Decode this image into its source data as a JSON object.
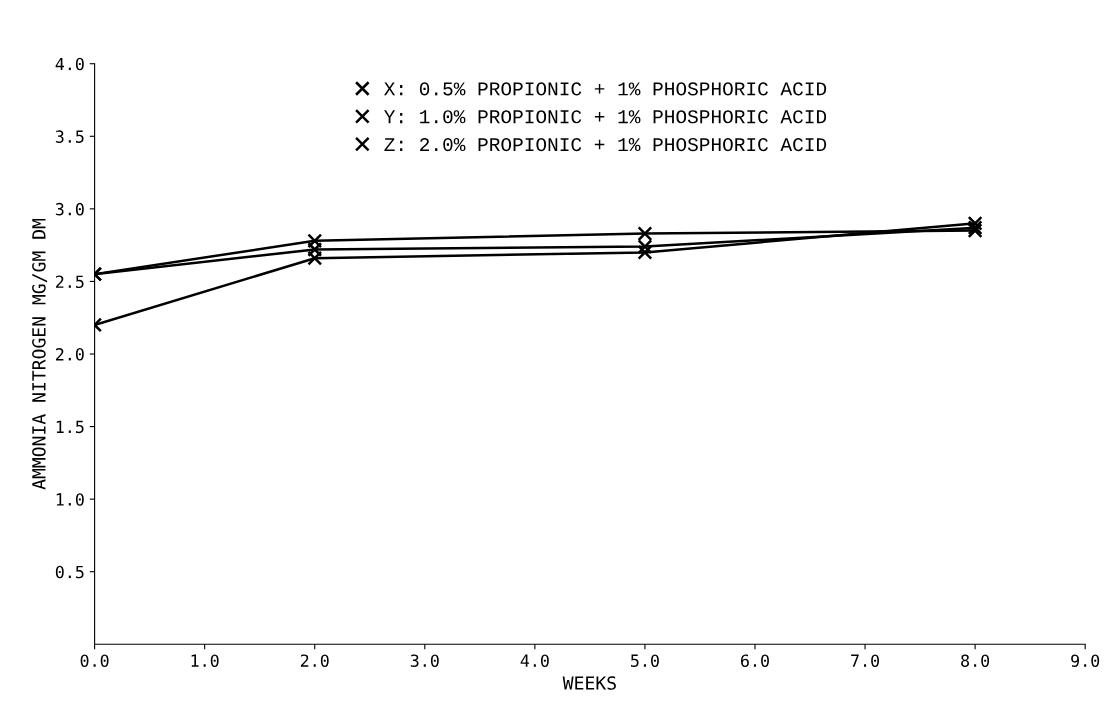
{
  "chart_data": {
    "type": "line",
    "xlabel": "WEEKS",
    "ylabel": "AMMONIA NITROGEN MG/GM DM",
    "x": [
      0,
      2,
      5,
      8
    ],
    "series": [
      {
        "name": "X: 0.5% PROPIONIC + 1% PHOSPHORIC ACID",
        "color": "#000000",
        "values": [
          2.55,
          2.78,
          2.83,
          2.85
        ]
      },
      {
        "name": "Y: 1.0% PROPIONIC + 1% PHOSPHORIC ACID",
        "color": "#000000",
        "values": [
          2.55,
          2.72,
          2.74,
          2.87
        ]
      },
      {
        "name": "Z: 2.0% PROPIONIC + 1% PHOSPHORIC ACID",
        "color": "#000000",
        "values": [
          2.2,
          2.66,
          2.7,
          2.9
        ]
      }
    ],
    "xlim": [
      0,
      9
    ],
    "ylim": [
      0,
      4
    ],
    "xticks": [
      {
        "value": 0,
        "label": "0.0"
      },
      {
        "value": 1,
        "label": "1.0"
      },
      {
        "value": 2,
        "label": "2.0"
      },
      {
        "value": 3,
        "label": "3.0"
      },
      {
        "value": 4,
        "label": "4.0"
      },
      {
        "value": 5,
        "label": "5.0"
      },
      {
        "value": 6,
        "label": "6.0"
      },
      {
        "value": 7,
        "label": "7.0"
      },
      {
        "value": 8,
        "label": "8.0"
      },
      {
        "value": 9,
        "label": "9.0"
      }
    ],
    "yticks": [
      0.5,
      {
        "value": 1,
        "label": "1.0"
      },
      1.5,
      {
        "value": 2,
        "label": "2.0"
      },
      2.5,
      {
        "value": 3,
        "label": "3.0"
      },
      3.5,
      {
        "value": 4,
        "label": "4.0"
      }
    ],
    "legend": "top",
    "grid": false,
    "marker": "cross"
  }
}
